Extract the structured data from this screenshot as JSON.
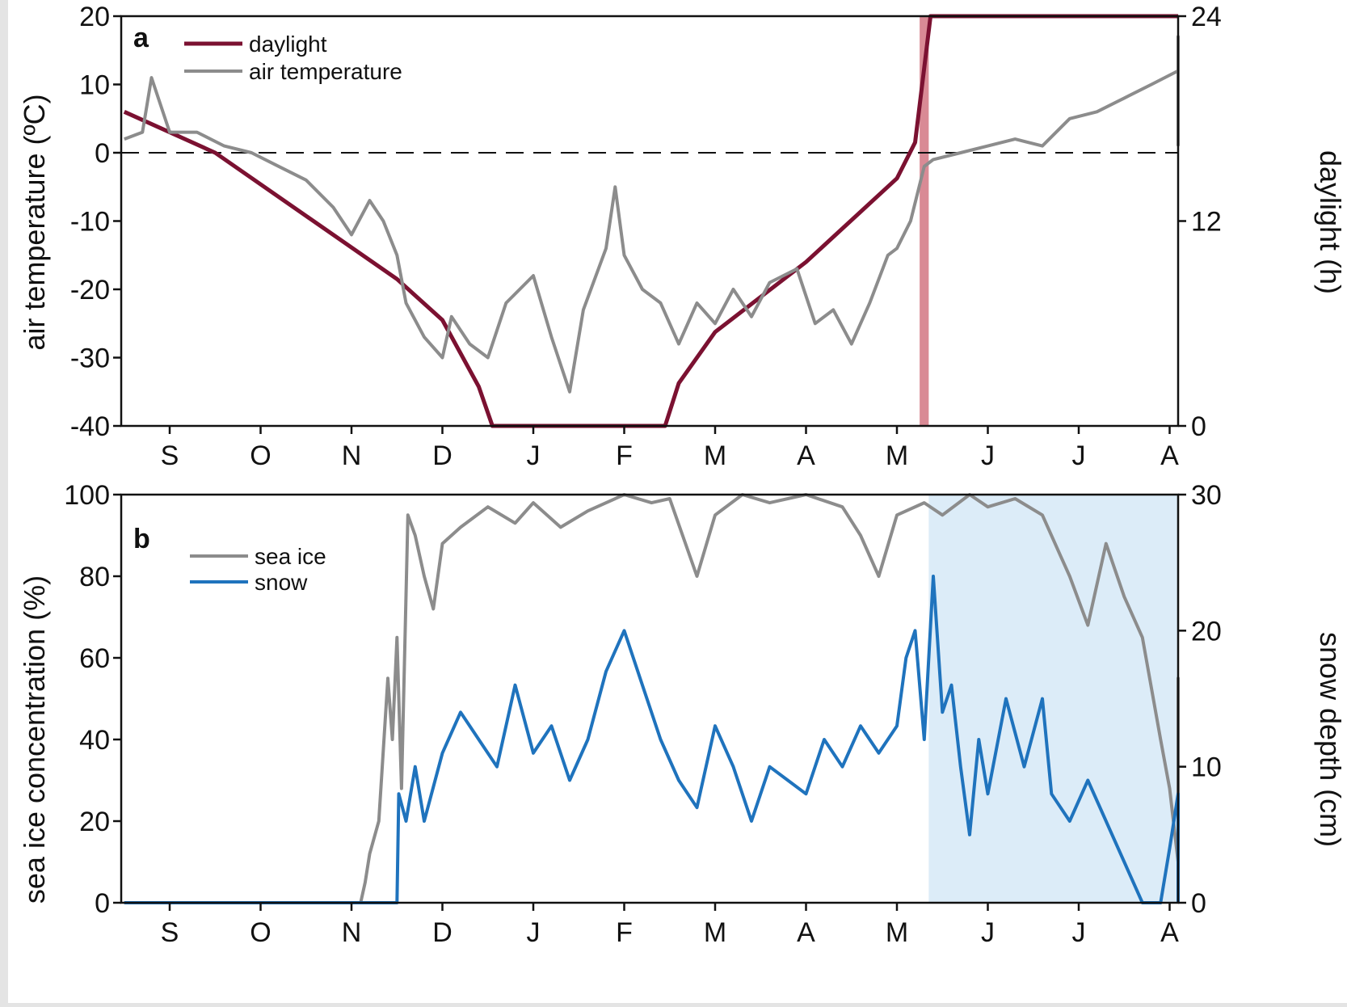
{
  "chart_data": [
    {
      "type": "line",
      "panel_label": "a",
      "ylabel": "air temperature (ºC)",
      "ylabel2": "daylight (h)",
      "ylim": [
        -40,
        20
      ],
      "ylim2": [
        0,
        24
      ],
      "yticks": [
        "20",
        "10",
        "0",
        "-10",
        "-20",
        "-30",
        "-40"
      ],
      "yticks2": [
        "24",
        "12",
        "0"
      ],
      "xticks": [
        "S",
        "O",
        "N",
        "D",
        "J",
        "F",
        "M",
        "A",
        "M",
        "J",
        "J",
        "A"
      ],
      "xlim_months": [
        0,
        11.7
      ],
      "zero_reference": "dashed line at 0 ºC",
      "highlight_band": {
        "from_month": 8.25,
        "to_month": 8.35,
        "color": "#d98a95"
      },
      "legend": [
        {
          "label": "daylight",
          "color": "#7b1131"
        },
        {
          "label": "air temperature",
          "color": "#8c8c8c"
        }
      ],
      "series": [
        {
          "name": "daylight",
          "color": "#7b1131",
          "axis": "right",
          "points": [
            [
              -0.5,
              18.4
            ],
            [
              0.5,
              16.0
            ],
            [
              1.5,
              12.3
            ],
            [
              2.5,
              8.6
            ],
            [
              3.0,
              6.2
            ],
            [
              3.4,
              2.3
            ],
            [
              3.55,
              0
            ],
            [
              5.45,
              0
            ],
            [
              5.6,
              2.5
            ],
            [
              6.0,
              5.5
            ],
            [
              7.0,
              9.6
            ],
            [
              8.0,
              14.5
            ],
            [
              8.2,
              16.6
            ],
            [
              8.37,
              24
            ],
            [
              11.7,
              24
            ]
          ]
        },
        {
          "name": "air temperature",
          "color": "#8c8c8c",
          "axis": "left",
          "points": [
            [
              -0.5,
              2
            ],
            [
              -0.3,
              3
            ],
            [
              -0.2,
              11
            ],
            [
              0,
              3
            ],
            [
              0.3,
              3
            ],
            [
              0.6,
              1
            ],
            [
              0.9,
              0
            ],
            [
              1.2,
              -2
            ],
            [
              1.5,
              -4
            ],
            [
              1.8,
              -8
            ],
            [
              2.0,
              -12
            ],
            [
              2.2,
              -7
            ],
            [
              2.35,
              -10
            ],
            [
              2.5,
              -15
            ],
            [
              2.6,
              -22
            ],
            [
              2.8,
              -27
            ],
            [
              3.0,
              -30
            ],
            [
              3.1,
              -24
            ],
            [
              3.3,
              -28
            ],
            [
              3.5,
              -30
            ],
            [
              3.7,
              -22
            ],
            [
              4.0,
              -18
            ],
            [
              4.2,
              -27
            ],
            [
              4.4,
              -35
            ],
            [
              4.55,
              -23
            ],
            [
              4.8,
              -14
            ],
            [
              4.9,
              -5
            ],
            [
              5.0,
              -15
            ],
            [
              5.2,
              -20
            ],
            [
              5.4,
              -22
            ],
            [
              5.6,
              -28
            ],
            [
              5.8,
              -22
            ],
            [
              6.0,
              -25
            ],
            [
              6.2,
              -20
            ],
            [
              6.4,
              -24
            ],
            [
              6.6,
              -19
            ],
            [
              6.9,
              -17
            ],
            [
              7.1,
              -25
            ],
            [
              7.3,
              -23
            ],
            [
              7.5,
              -28
            ],
            [
              7.7,
              -22
            ],
            [
              7.9,
              -15
            ],
            [
              8.0,
              -14
            ],
            [
              8.15,
              -10
            ],
            [
              8.3,
              -2
            ],
            [
              8.4,
              -1
            ],
            [
              8.7,
              0
            ],
            [
              9.0,
              1
            ],
            [
              9.3,
              2
            ],
            [
              9.6,
              1
            ],
            [
              9.9,
              5
            ],
            [
              10.2,
              6
            ],
            [
              10.5,
              8
            ],
            [
              10.8,
              10
            ],
            [
              11.1,
              12
            ],
            [
              11.3,
              17
            ],
            [
              11.5,
              5
            ],
            [
              11.7,
              1
            ]
          ]
        }
      ]
    },
    {
      "type": "line",
      "panel_label": "b",
      "ylabel": "sea ice concentration (%)",
      "ylabel2": "snow depth (cm)",
      "ylim": [
        0,
        100
      ],
      "ylim2": [
        0,
        30
      ],
      "yticks": [
        "100",
        "80",
        "60",
        "40",
        "20",
        "0"
      ],
      "yticks2": [
        "30",
        "20",
        "10",
        "0"
      ],
      "xticks": [
        "S",
        "O",
        "N",
        "D",
        "J",
        "F",
        "M",
        "A",
        "M",
        "J",
        "J",
        "A"
      ],
      "xlim_months": [
        0,
        11.7
      ],
      "highlight_band": {
        "from_month": 8.35,
        "to_month": 11.7,
        "color": "#dcecf8"
      },
      "legend": [
        {
          "label": "sea ice",
          "color": "#8c8c8c"
        },
        {
          "label": "snow",
          "color": "#1f73bd"
        }
      ],
      "series": [
        {
          "name": "sea ice",
          "color": "#8c8c8c",
          "axis": "left",
          "points": [
            [
              -0.5,
              0
            ],
            [
              2.1,
              0
            ],
            [
              2.15,
              5
            ],
            [
              2.2,
              12
            ],
            [
              2.3,
              20
            ],
            [
              2.4,
              55
            ],
            [
              2.45,
              40
            ],
            [
              2.5,
              65
            ],
            [
              2.55,
              28
            ],
            [
              2.62,
              95
            ],
            [
              2.7,
              90
            ],
            [
              2.8,
              80
            ],
            [
              2.9,
              72
            ],
            [
              3.0,
              88
            ],
            [
              3.2,
              92
            ],
            [
              3.5,
              97
            ],
            [
              3.8,
              93
            ],
            [
              4.0,
              98
            ],
            [
              4.3,
              92
            ],
            [
              4.6,
              96
            ],
            [
              5.0,
              100
            ],
            [
              5.3,
              98
            ],
            [
              5.5,
              99
            ],
            [
              5.8,
              80
            ],
            [
              6.0,
              95
            ],
            [
              6.3,
              100
            ],
            [
              6.6,
              98
            ],
            [
              7.0,
              100
            ],
            [
              7.4,
              97
            ],
            [
              7.6,
              90
            ],
            [
              7.8,
              80
            ],
            [
              8.0,
              95
            ],
            [
              8.3,
              98
            ],
            [
              8.5,
              95
            ],
            [
              8.8,
              100
            ],
            [
              9.0,
              97
            ],
            [
              9.3,
              99
            ],
            [
              9.6,
              95
            ],
            [
              9.8,
              85
            ],
            [
              9.9,
              80
            ],
            [
              10.1,
              68
            ],
            [
              10.3,
              88
            ],
            [
              10.5,
              75
            ],
            [
              10.7,
              65
            ],
            [
              10.9,
              40
            ],
            [
              11.0,
              28
            ],
            [
              11.2,
              10
            ],
            [
              11.35,
              20
            ],
            [
              11.5,
              55
            ],
            [
              11.6,
              15
            ],
            [
              11.7,
              45
            ]
          ]
        },
        {
          "name": "snow",
          "color": "#1f73bd",
          "axis": "right",
          "points": [
            [
              -0.5,
              0
            ],
            [
              2.5,
              0
            ],
            [
              2.52,
              8
            ],
            [
              2.6,
              6
            ],
            [
              2.7,
              10
            ],
            [
              2.8,
              6
            ],
            [
              3.0,
              11
            ],
            [
              3.2,
              14
            ],
            [
              3.4,
              12
            ],
            [
              3.6,
              10
            ],
            [
              3.8,
              16
            ],
            [
              4.0,
              11
            ],
            [
              4.2,
              13
            ],
            [
              4.4,
              9
            ],
            [
              4.6,
              12
            ],
            [
              4.8,
              17
            ],
            [
              5.0,
              20
            ],
            [
              5.2,
              16
            ],
            [
              5.4,
              12
            ],
            [
              5.6,
              9
            ],
            [
              5.8,
              7
            ],
            [
              6.0,
              13
            ],
            [
              6.2,
              10
            ],
            [
              6.4,
              6
            ],
            [
              6.6,
              10
            ],
            [
              6.8,
              9
            ],
            [
              7.0,
              8
            ],
            [
              7.2,
              12
            ],
            [
              7.4,
              10
            ],
            [
              7.6,
              13
            ],
            [
              7.8,
              11
            ],
            [
              8.0,
              13
            ],
            [
              8.1,
              18
            ],
            [
              8.2,
              20
            ],
            [
              8.3,
              12
            ],
            [
              8.4,
              24
            ],
            [
              8.5,
              14
            ],
            [
              8.6,
              16
            ],
            [
              8.7,
              10
            ],
            [
              8.8,
              5
            ],
            [
              8.9,
              12
            ],
            [
              9.0,
              8
            ],
            [
              9.2,
              15
            ],
            [
              9.4,
              10
            ],
            [
              9.6,
              15
            ],
            [
              9.7,
              8
            ],
            [
              9.9,
              6
            ],
            [
              10.1,
              9
            ],
            [
              10.3,
              6
            ],
            [
              10.5,
              3
            ],
            [
              10.7,
              0
            ],
            [
              10.9,
              0
            ],
            [
              11.0,
              4
            ],
            [
              11.1,
              8
            ],
            [
              11.2,
              0
            ],
            [
              11.7,
              0
            ]
          ]
        }
      ]
    }
  ]
}
